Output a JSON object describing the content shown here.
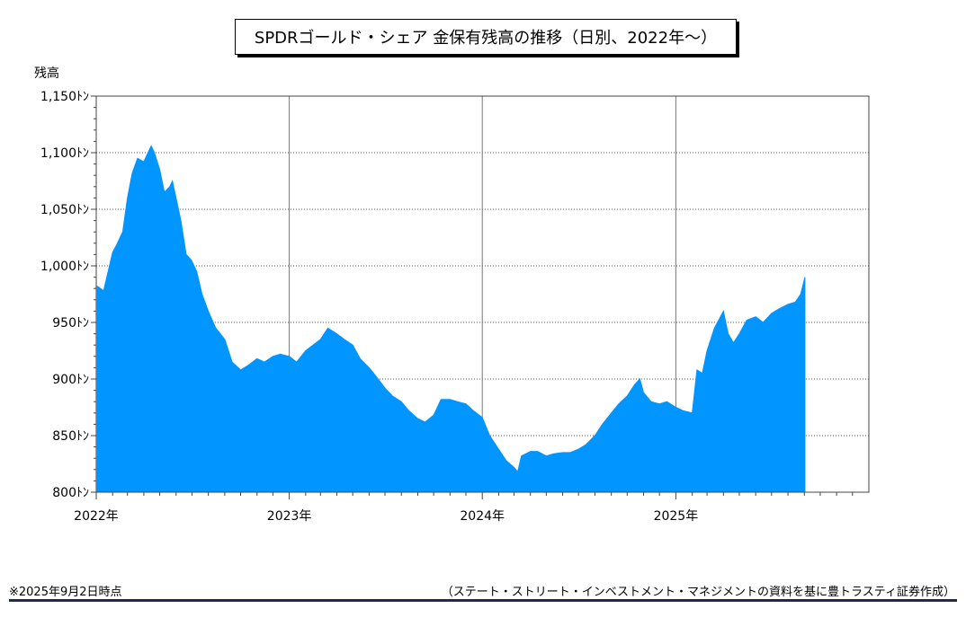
{
  "chart_data": {
    "type": "area",
    "title": "SPDRゴールド・シェア 金保有残高の推移（日別、2022年～）",
    "ylabel": "残高",
    "ylim": [
      800,
      1150
    ],
    "yticks": [
      800,
      850,
      900,
      950,
      1000,
      1050,
      1100,
      1150
    ],
    "ytick_labels": [
      "800ﾄﾝ",
      "850ﾄﾝ",
      "900ﾄﾝ",
      "950ﾄﾝ",
      "1,000ﾄﾝ",
      "1,050ﾄﾝ",
      "1,100ﾄﾝ",
      "1,150ﾄﾝ"
    ],
    "xlim": [
      "2022-01-01",
      "2026-01-01"
    ],
    "xtick_labels": [
      "2022年",
      "2023年",
      "2024年",
      "2025年"
    ],
    "grid": true,
    "color": "#0095ff",
    "series": [
      {
        "x": [
          "2022-01-03",
          "2022-01-15",
          "2022-02-01",
          "2022-02-08",
          "2022-02-20",
          "2022-03-01",
          "2022-03-10",
          "2022-03-20",
          "2022-04-01",
          "2022-04-15",
          "2022-04-21",
          "2022-05-01",
          "2022-05-10",
          "2022-05-20",
          "2022-05-25",
          "2022-06-10",
          "2022-06-20",
          "2022-06-30",
          "2022-07-10",
          "2022-07-20",
          "2022-08-01",
          "2022-08-15",
          "2022-09-01",
          "2022-09-15",
          "2022-10-01",
          "2022-10-15",
          "2022-11-01",
          "2022-11-15",
          "2022-12-01",
          "2022-12-15",
          "2023-01-01",
          "2023-01-15",
          "2023-02-01",
          "2023-02-15",
          "2023-03-01",
          "2023-03-15",
          "2023-04-01",
          "2023-04-15",
          "2023-05-01",
          "2023-05-15",
          "2023-06-01",
          "2023-06-15",
          "2023-07-01",
          "2023-07-15",
          "2023-08-01",
          "2023-08-15",
          "2023-09-01",
          "2023-09-15",
          "2023-10-01",
          "2023-10-15",
          "2023-11-01",
          "2023-11-15",
          "2023-12-01",
          "2023-12-15",
          "2024-01-01",
          "2024-01-15",
          "2024-02-01",
          "2024-02-15",
          "2024-03-01",
          "2024-03-08",
          "2024-03-15",
          "2024-04-01",
          "2024-04-15",
          "2024-05-01",
          "2024-05-15",
          "2024-06-01",
          "2024-06-15",
          "2024-07-01",
          "2024-07-15",
          "2024-08-01",
          "2024-08-15",
          "2024-09-01",
          "2024-09-15",
          "2024-10-01",
          "2024-10-15",
          "2024-10-25",
          "2024-11-01",
          "2024-11-15",
          "2024-12-01",
          "2024-12-15",
          "2025-01-01",
          "2025-01-15",
          "2025-02-01",
          "2025-02-10",
          "2025-02-20",
          "2025-03-01",
          "2025-03-15",
          "2025-04-01",
          "2025-04-10",
          "2025-04-20",
          "2025-05-01",
          "2025-05-15",
          "2025-06-01",
          "2025-06-15",
          "2025-07-01",
          "2025-07-15",
          "2025-08-01",
          "2025-08-15",
          "2025-08-25",
          "2025-09-02"
        ],
        "y": [
          982,
          978,
          1012,
          1018,
          1030,
          1060,
          1082,
          1095,
          1092,
          1106,
          1100,
          1085,
          1065,
          1070,
          1075,
          1040,
          1010,
          1005,
          995,
          975,
          960,
          945,
          935,
          915,
          908,
          912,
          918,
          915,
          920,
          922,
          920,
          915,
          925,
          930,
          935,
          945,
          940,
          935,
          930,
          918,
          910,
          902,
          892,
          885,
          880,
          872,
          865,
          862,
          868,
          882,
          882,
          880,
          878,
          872,
          866,
          850,
          838,
          828,
          822,
          818,
          832,
          836,
          836,
          832,
          834,
          835,
          835,
          838,
          842,
          850,
          860,
          870,
          878,
          885,
          895,
          900,
          888,
          880,
          878,
          880,
          875,
          872,
          870,
          908,
          905,
          925,
          945,
          960,
          940,
          932,
          940,
          952,
          955,
          950,
          958,
          962,
          966,
          968,
          975,
          990
        ]
      }
    ]
  },
  "footer": {
    "note_left": "※2025年9月2日時点",
    "source": "（ステート・ストリート・インベストメント・マネジメントの資料を基に豊トラスティ証券作成）"
  }
}
